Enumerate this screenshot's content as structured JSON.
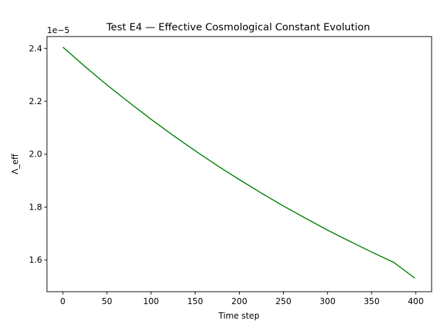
{
  "chart_data": {
    "type": "line",
    "title": "Test E4 — Effective Cosmological Constant Evolution",
    "xlabel": "Time step",
    "ylabel": "Λ_eff",
    "y_offset_label": "1e−5",
    "xlim": [
      -18,
      418
    ],
    "ylim": [
      1.48,
      2.445
    ],
    "x_ticks": [
      0,
      50,
      100,
      150,
      200,
      250,
      300,
      350,
      400
    ],
    "x_tick_labels": [
      "0",
      "50",
      "100",
      "150",
      "200",
      "250",
      "300",
      "350",
      "400"
    ],
    "y_ticks": [
      1.6,
      1.8,
      2.0,
      2.2,
      2.4
    ],
    "y_tick_labels": [
      "1.6",
      "1.8",
      "2.0",
      "2.2",
      "2.4"
    ],
    "grid": false,
    "line_color": "#008000",
    "series": [
      {
        "x": [
          0,
          25,
          50,
          75,
          100,
          125,
          150,
          175,
          200,
          225,
          250,
          275,
          300,
          325,
          350,
          375,
          399
        ],
        "values": [
          2.405,
          2.332,
          2.262,
          2.196,
          2.132,
          2.071,
          2.013,
          1.957,
          1.904,
          1.853,
          1.804,
          1.758,
          1.713,
          1.671,
          1.63,
          1.591,
          1.531
        ]
      }
    ]
  }
}
